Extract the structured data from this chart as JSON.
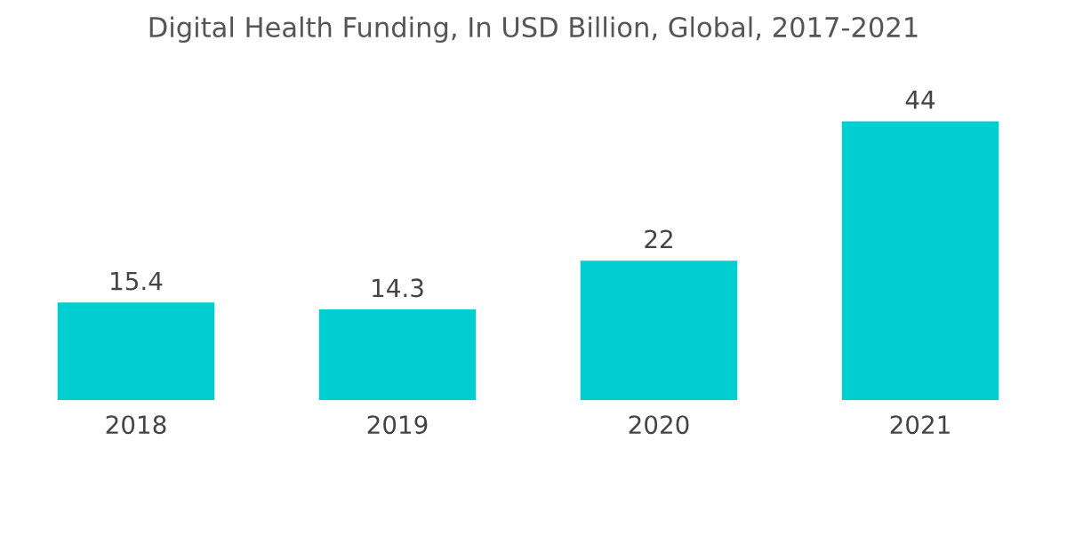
{
  "chart_data": {
    "type": "bar",
    "title": "Digital Health Funding, In USD Billion, Global, 2017-2021",
    "categories": [
      "2018",
      "2019",
      "2020",
      "2021"
    ],
    "values": [
      15.4,
      14.3,
      22,
      44
    ],
    "color": "#00ced1",
    "data_labels": true,
    "grid": false,
    "legend": false
  }
}
